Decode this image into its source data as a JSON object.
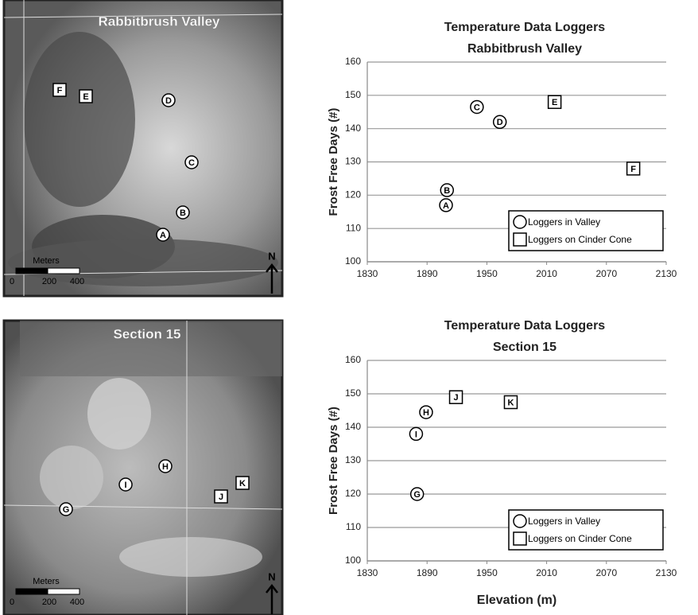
{
  "chart_data": [
    {
      "type": "scatter",
      "title": "Temperature Data Loggers",
      "subtitle": "Rabbitbrush Valley",
      "y_label": "Frost Free Days (#)",
      "xlim": [
        1830,
        2130
      ],
      "xticks": [
        1830,
        1890,
        1950,
        2010,
        2070,
        2130
      ],
      "ylim": [
        100,
        160
      ],
      "yticks": [
        100,
        110,
        120,
        130,
        140,
        150,
        160
      ],
      "grid": true,
      "legend": "lower right",
      "series": [
        {
          "name": "Loggers in Valley",
          "marker": "circle",
          "color": "#000000",
          "labels": [
            "A",
            "B",
            "C",
            "D"
          ],
          "x": [
            1909,
            1910,
            1940,
            1963
          ],
          "values": [
            117,
            121.5,
            146.5,
            142
          ]
        },
        {
          "name": "Loggers on Cinder Cone",
          "marker": "square",
          "color": "#000000",
          "labels": [
            "E",
            "F"
          ],
          "x": [
            2018,
            2097
          ],
          "values": [
            148,
            128
          ]
        }
      ]
    },
    {
      "type": "scatter",
      "title": "Temperature Data Loggers",
      "subtitle": "Section 15",
      "x_label": "Elevation (m)",
      "y_label": "Frost Free Days (#)",
      "xlim": [
        1830,
        2130
      ],
      "xticks": [
        1830,
        1890,
        1950,
        2010,
        2070,
        2130
      ],
      "ylim": [
        100,
        160
      ],
      "yticks": [
        100,
        110,
        120,
        130,
        140,
        150,
        160
      ],
      "grid": true,
      "legend": "lower right",
      "series": [
        {
          "name": "Loggers in Valley",
          "marker": "circle",
          "color": "#000000",
          "labels": [
            "G",
            "I",
            "H"
          ],
          "x": [
            1880,
            1879,
            1889
          ],
          "values": [
            120,
            138,
            144.5
          ]
        },
        {
          "name": "Loggers on Cinder Cone",
          "marker": "square",
          "color": "#000000",
          "labels": [
            "J",
            "K"
          ],
          "x": [
            1919,
            1974
          ],
          "values": [
            149,
            147.5
          ]
        }
      ]
    }
  ],
  "maps": [
    {
      "title": "Rabbitbrush Valley",
      "scale_title": "Meters",
      "scale_labels": [
        "0",
        "200",
        "400"
      ],
      "north": "N",
      "markers": [
        {
          "label": "F",
          "shape": "square"
        },
        {
          "label": "E",
          "shape": "square"
        },
        {
          "label": "D",
          "shape": "circle"
        },
        {
          "label": "C",
          "shape": "circle"
        },
        {
          "label": "B",
          "shape": "circle"
        },
        {
          "label": "A",
          "shape": "circle"
        }
      ]
    },
    {
      "title": "Section 15",
      "scale_title": "Meters",
      "scale_labels": [
        "0",
        "200",
        "400"
      ],
      "north": "N",
      "markers": [
        {
          "label": "G",
          "shape": "circle"
        },
        {
          "label": "I",
          "shape": "circle"
        },
        {
          "label": "H",
          "shape": "circle"
        },
        {
          "label": "J",
          "shape": "square"
        },
        {
          "label": "K",
          "shape": "square"
        }
      ]
    }
  ]
}
